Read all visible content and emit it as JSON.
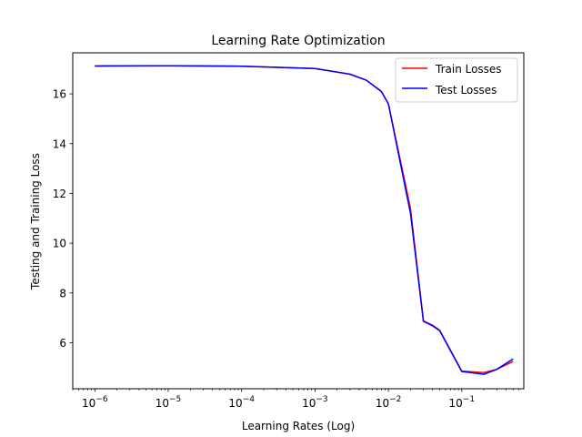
{
  "chart_data": {
    "type": "line",
    "title": "Learning Rate Optimization",
    "xlabel": "Learning Rates (Log)",
    "ylabel": "Testing and Training Loss",
    "xscale": "log",
    "xlim": [
      5e-07,
      0.7
    ],
    "ylim": [
      4.15,
      17.65
    ],
    "yticks": [
      6,
      8,
      10,
      12,
      14,
      16
    ],
    "xticks": [
      {
        "value": 1e-06,
        "base": "10",
        "exp": "−6"
      },
      {
        "value": 1e-05,
        "base": "10",
        "exp": "−5"
      },
      {
        "value": 0.0001,
        "base": "10",
        "exp": "−4"
      },
      {
        "value": 0.001,
        "base": "10",
        "exp": "−3"
      },
      {
        "value": 0.01,
        "base": "10",
        "exp": "−2"
      },
      {
        "value": 0.1,
        "base": "10",
        "exp": "−1"
      }
    ],
    "grid": false,
    "legend_position": "top-right",
    "series": [
      {
        "name": "Train Losses",
        "color": "#ff0000",
        "x": [
          1e-06,
          1e-05,
          0.0001,
          0.001,
          0.003,
          0.005,
          0.008,
          0.01,
          0.02,
          0.03,
          0.04,
          0.05,
          0.1,
          0.2,
          0.3,
          0.5
        ],
        "y": [
          17.12,
          17.13,
          17.11,
          17.02,
          16.79,
          16.55,
          16.1,
          15.6,
          11.4,
          6.88,
          6.7,
          6.5,
          4.86,
          4.8,
          4.93,
          5.25
        ]
      },
      {
        "name": "Test Losses",
        "color": "#0000ff",
        "x": [
          1e-06,
          1e-05,
          0.0001,
          0.001,
          0.003,
          0.005,
          0.008,
          0.01,
          0.02,
          0.03,
          0.04,
          0.05,
          0.1,
          0.2,
          0.3,
          0.5
        ],
        "y": [
          17.12,
          17.13,
          17.11,
          17.02,
          16.79,
          16.55,
          16.1,
          15.6,
          11.2,
          6.86,
          6.68,
          6.48,
          4.84,
          4.73,
          4.93,
          5.35
        ]
      }
    ]
  }
}
